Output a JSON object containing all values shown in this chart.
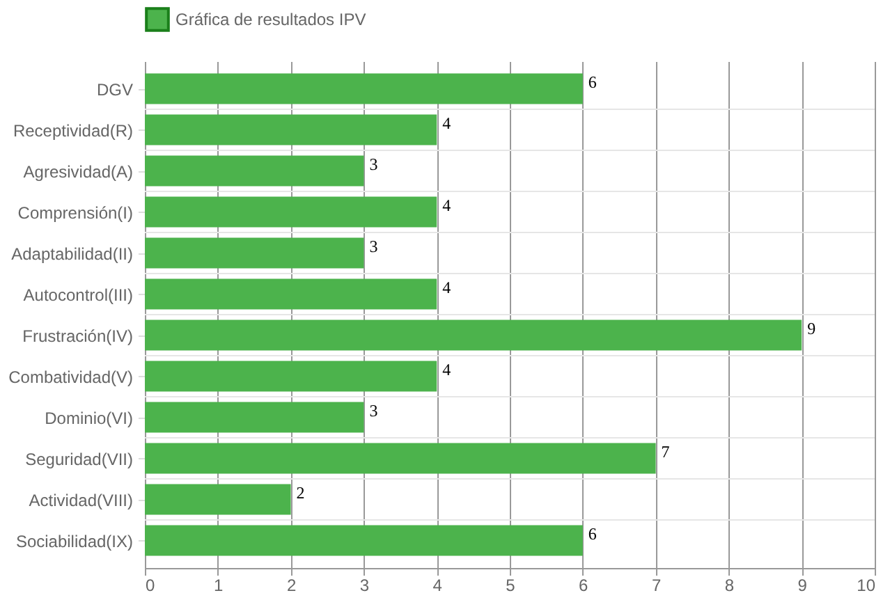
{
  "chart_data": {
    "type": "bar",
    "orientation": "horizontal",
    "categories": [
      "DGV",
      "Receptividad(R)",
      "Agresividad(A)",
      "Comprensión(I)",
      "Adaptabilidad(II)",
      "Autocontrol(III)",
      "Frustración(IV)",
      "Combatividad(V)",
      "Dominio(VI)",
      "Seguridad(VII)",
      "Actividad(VIII)",
      "Sociabilidad(IX)"
    ],
    "series": [
      {
        "name": "Gráfica de resultados IPV",
        "color": "#4cb34c",
        "values": [
          6,
          4,
          3,
          4,
          3,
          4,
          9,
          4,
          3,
          7,
          2,
          6
        ]
      }
    ],
    "xlim": [
      0,
      10
    ],
    "xticks": [
      0,
      1,
      2,
      3,
      4,
      5,
      6,
      7,
      8,
      9,
      10
    ],
    "grid": true,
    "legend": "top",
    "data_labels": true
  }
}
